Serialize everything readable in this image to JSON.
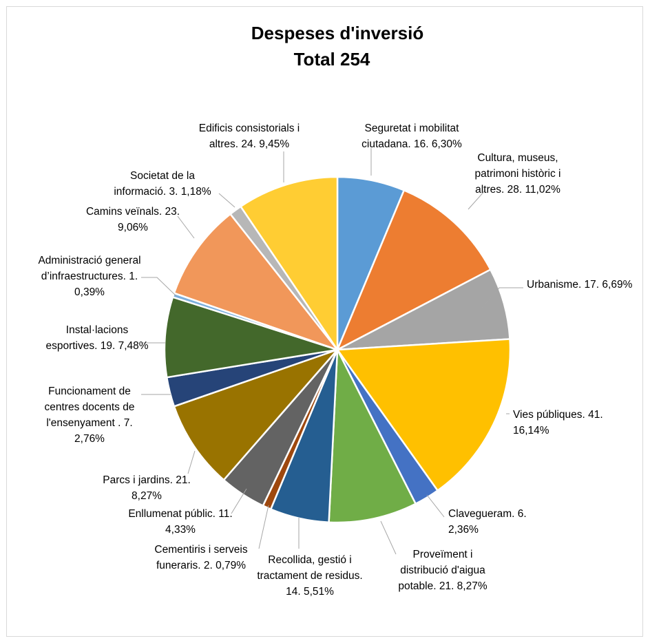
{
  "chart_data": {
    "type": "pie",
    "title": "Despeses d'inversió",
    "subtitle": "Total 254",
    "slices": [
      {
        "name": "Seguretat i mobilitat ciutadana",
        "value": 16,
        "percent": "6,30%",
        "color": "#5b9bd5",
        "label_lines": [
          "Seguretat i mobilitat",
          "ciutadana. 16. 6,30%"
        ]
      },
      {
        "name": "Cultura, museus, patrimoni històric i altres",
        "value": 28,
        "percent": "11,02%",
        "color": "#ed7d31",
        "label_lines": [
          "Cultura, museus,",
          "patrimoni històric i",
          "altres. 28. 11,02%"
        ]
      },
      {
        "name": "Urbanisme",
        "value": 17,
        "percent": "6,69%",
        "color": "#a5a5a5",
        "label_lines": [
          "Urbanisme. 17. 6,69%"
        ]
      },
      {
        "name": "Vies públiques",
        "value": 41,
        "percent": "16,14%",
        "color": "#ffc000",
        "label_lines": [
          "Vies públiques. 41.",
          "16,14%"
        ]
      },
      {
        "name": "Clavegueram",
        "value": 6,
        "percent": "2,36%",
        "color": "#4472c4",
        "label_lines": [
          "Clavegueram. 6.",
          "2,36%"
        ]
      },
      {
        "name": "Proveïment i distribució d'aigua potable",
        "value": 21,
        "percent": "8,27%",
        "color": "#70ad47",
        "label_lines": [
          "Proveïment i",
          "distribució d'aigua",
          "potable. 21. 8,27%"
        ]
      },
      {
        "name": "Recollida, gestió i tractament de residus",
        "value": 14,
        "percent": "5,51%",
        "color": "#255e91",
        "label_lines": [
          "Recollida, gestió i",
          "tractament de residus.",
          "14. 5,51%"
        ]
      },
      {
        "name": "Cementiris i serveis funeraris",
        "value": 2,
        "percent": "0,79%",
        "color": "#9e480e",
        "label_lines": [
          "Cementiris i serveis",
          "funeraris. 2. 0,79%"
        ]
      },
      {
        "name": "Enllumenat públic",
        "value": 11,
        "percent": "4,33%",
        "color": "#636363",
        "label_lines": [
          "Enllumenat públic. 11.",
          "4,33%"
        ]
      },
      {
        "name": "Parcs i jardins",
        "value": 21,
        "percent": "8,27%",
        "color": "#997300",
        "label_lines": [
          "Parcs i jardins. 21.",
          "8,27%"
        ]
      },
      {
        "name": "Funcionament de centres docents de l'ensenyament",
        "value": 7,
        "percent": "2,76%",
        "color": "#264478",
        "label_lines": [
          "Funcionament de",
          "centres docents de",
          "l'ensenyament . 7.",
          "2,76%"
        ]
      },
      {
        "name": "Instal·lacions esportives",
        "value": 19,
        "percent": "7,48%",
        "color": "#43682b",
        "label_lines": [
          "Instal·lacions",
          "esportives. 19. 7,48%"
        ]
      },
      {
        "name": "Administració general d’infraestructures",
        "value": 1,
        "percent": "0,39%",
        "color": "#7cafdd",
        "label_lines": [
          "Administració general",
          "d’infraestructures. 1.",
          "0,39%"
        ]
      },
      {
        "name": "Camins veïnals",
        "value": 23,
        "percent": "9,06%",
        "color": "#f1975a",
        "label_lines": [
          "Camins veïnals. 23.",
          "9,06%"
        ]
      },
      {
        "name": "Societat de la informació",
        "value": 3,
        "percent": "1,18%",
        "color": "#b7b7b7",
        "label_lines": [
          "Societat de la",
          "informació. 3. 1,18%"
        ]
      },
      {
        "name": "Edificis consistorials i altres",
        "value": 24,
        "percent": "9,45%",
        "color": "#ffcd33",
        "label_lines": [
          "Edificis consistorials i",
          "altres. 24. 9,45%"
        ]
      }
    ]
  }
}
